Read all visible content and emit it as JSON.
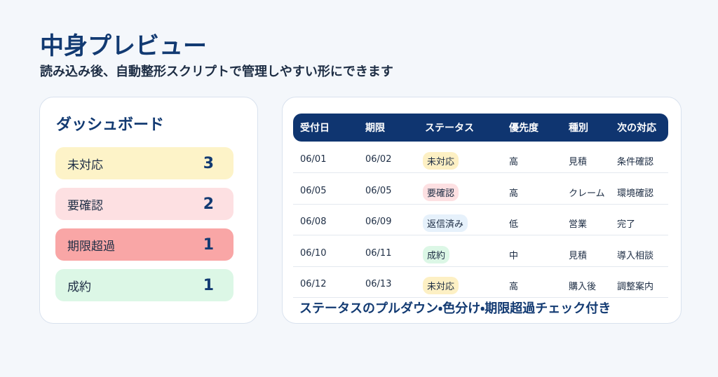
{
  "header": {
    "title": "中身プレビュー",
    "subtitle": "読み込み後、自動整形スクリプトで管理しやすい形にできます"
  },
  "dashboard": {
    "title": "ダッシュボード",
    "items": [
      {
        "label": "未対応",
        "count": 3
      },
      {
        "label": "要確認",
        "count": 2
      },
      {
        "label": "期限超過",
        "count": 1
      },
      {
        "label": "成約",
        "count": 1
      }
    ]
  },
  "table": {
    "columns": [
      "受付日",
      "期限",
      "ステータス",
      "優先度",
      "種別",
      "次の対応"
    ],
    "rows": [
      [
        "06/01",
        "06/02",
        "未対応",
        "高",
        "見積",
        "条件確認"
      ],
      [
        "06/05",
        "06/05",
        "要確認",
        "高",
        "クレーム",
        "環境確認"
      ],
      [
        "06/08",
        "06/09",
        "返信済み",
        "低",
        "営業",
        "完了"
      ],
      [
        "06/10",
        "06/11",
        "成約",
        "中",
        "見積",
        "導入相談"
      ],
      [
        "06/12",
        "06/13",
        "未対応",
        "高",
        "購入後",
        "調整案内"
      ]
    ],
    "caption": "ステータスのプルダウン・色分け・期限超過チェック付き"
  }
}
